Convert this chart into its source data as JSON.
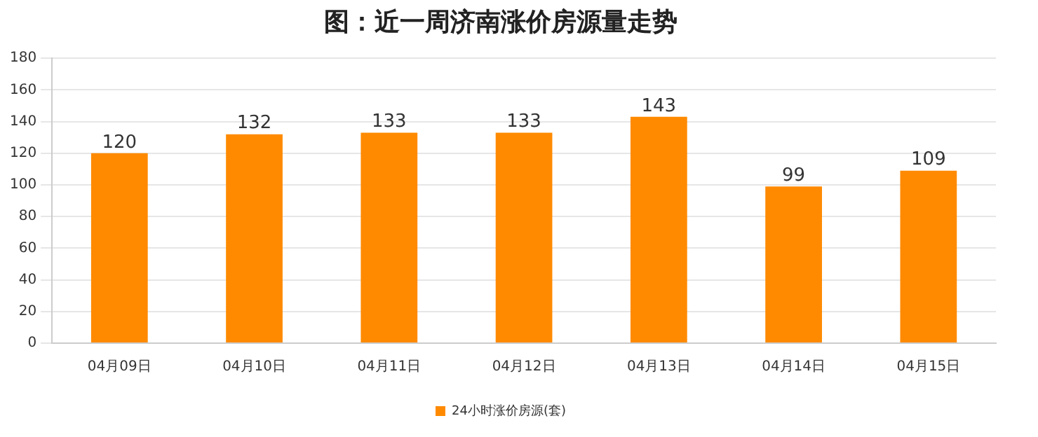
{
  "chart_data": {
    "type": "bar",
    "title": "图：近一周济南涨价房源量走势",
    "categories": [
      "04月09日",
      "04月10日",
      "04月11日",
      "04月12日",
      "04月13日",
      "04月14日",
      "04月15日"
    ],
    "series": [
      {
        "name": "24小时涨价房源(套)",
        "color": "#ff8a00",
        "values": [
          120,
          132,
          133,
          133,
          143,
          99,
          109
        ]
      }
    ],
    "ylim": [
      0,
      180
    ],
    "yticks": [
      0,
      20,
      40,
      60,
      80,
      100,
      120,
      140,
      160,
      180
    ],
    "grid": "y",
    "legend": "bottom",
    "data_labels": true
  }
}
